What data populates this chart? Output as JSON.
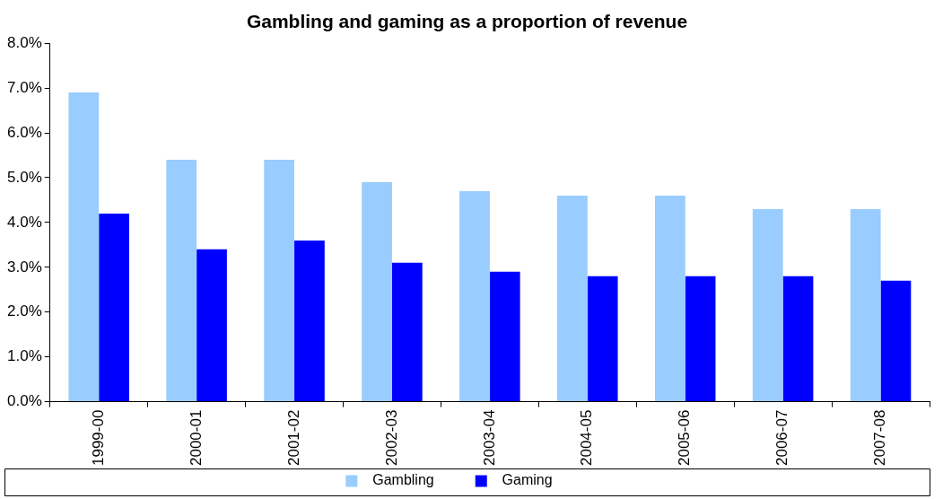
{
  "chart_data": {
    "type": "bar",
    "title": "Gambling and gaming as a proportion of revenue",
    "categories": [
      "1999-00",
      "2000-01",
      "2001-02",
      "2002-03",
      "2003-04",
      "2004-05",
      "2005-06",
      "2006-07",
      "2007-08"
    ],
    "series": [
      {
        "name": "Gambling",
        "color": "#99ccff",
        "values": [
          6.9,
          5.4,
          5.4,
          4.9,
          4.7,
          4.6,
          4.6,
          4.3,
          4.3
        ]
      },
      {
        "name": "Gaming",
        "color": "#0000ff",
        "values": [
          4.2,
          3.4,
          3.6,
          3.1,
          2.9,
          2.8,
          2.8,
          2.8,
          2.7
        ]
      }
    ],
    "ylim": [
      0,
      8
    ],
    "yticks": [
      {
        "value": 0,
        "label": "0.0%"
      },
      {
        "value": 1,
        "label": "1.0%"
      },
      {
        "value": 2,
        "label": "2.0%"
      },
      {
        "value": 3,
        "label": "3.0%"
      },
      {
        "value": 4,
        "label": "4.0%"
      },
      {
        "value": 5,
        "label": "5.0%"
      },
      {
        "value": 6,
        "label": "6.0%"
      },
      {
        "value": 7,
        "label": "7.0%"
      },
      {
        "value": 8,
        "label": "8.0%"
      }
    ],
    "grid": false,
    "legend": "bottom"
  }
}
